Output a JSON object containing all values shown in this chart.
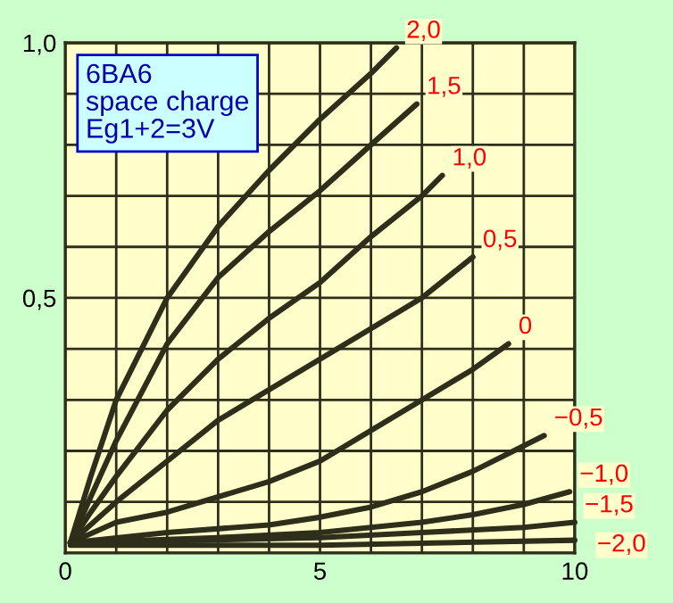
{
  "chart_data": {
    "type": "line",
    "annotations": [
      "6BA6\nspace charge\nEg1+2=3V"
    ],
    "xlim": [
      0,
      10
    ],
    "ylim": [
      0,
      1.0
    ],
    "xticks": [
      0,
      {
        "value": 1,
        "label": null
      },
      {
        "value": 2,
        "label": null
      },
      {
        "value": 3,
        "label": null
      },
      {
        "value": 4,
        "label": null
      },
      5,
      {
        "value": 6,
        "label": null
      },
      {
        "value": 7,
        "label": null
      },
      {
        "value": 8,
        "label": null
      },
      {
        "value": 9,
        "label": null
      },
      10
    ],
    "yticks": [
      {
        "value": 0,
        "label": null
      },
      {
        "value": 0.1,
        "label": null
      },
      {
        "value": 0.2,
        "label": null
      },
      {
        "value": 0.3,
        "label": null
      },
      {
        "value": 0.4,
        "label": null
      },
      {
        "value": 0.5,
        "label": "0,5"
      },
      {
        "value": 0.6,
        "label": null
      },
      {
        "value": 0.7,
        "label": null
      },
      {
        "value": 0.8,
        "label": null
      },
      {
        "value": 0.9,
        "label": null
      },
      {
        "value": 1.0,
        "label": "1,0"
      }
    ],
    "grid": true,
    "legend": false,
    "marker": "none",
    "line_style": "solid",
    "series": [
      {
        "name": "2,0",
        "color": "#2e2e1a",
        "x": [
          0.1,
          0.5,
          1,
          2,
          3,
          4,
          5,
          6,
          6.5
        ],
        "values": [
          0.02,
          0.15,
          0.3,
          0.5,
          0.64,
          0.75,
          0.85,
          0.94,
          0.99
        ]
      },
      {
        "name": "1,5",
        "color": "#2e2e1a",
        "x": [
          0.1,
          0.5,
          1,
          2,
          3,
          4,
          5,
          6,
          6.9
        ],
        "values": [
          0.02,
          0.11,
          0.22,
          0.41,
          0.54,
          0.63,
          0.71,
          0.8,
          0.88
        ]
      },
      {
        "name": "1,0",
        "color": "#2e2e1a",
        "x": [
          0.1,
          0.5,
          1,
          2,
          3,
          4,
          5,
          6,
          7,
          7.4
        ],
        "values": [
          0.02,
          0.08,
          0.15,
          0.28,
          0.38,
          0.46,
          0.53,
          0.62,
          0.7,
          0.74
        ]
      },
      {
        "name": "0,5",
        "color": "#2e2e1a",
        "x": [
          0.1,
          1,
          2,
          3,
          4,
          5,
          6,
          7,
          8
        ],
        "values": [
          0.02,
          0.1,
          0.18,
          0.26,
          0.32,
          0.38,
          0.44,
          0.5,
          0.58
        ]
      },
      {
        "name": "0",
        "color": "#2e2e1a",
        "x": [
          0.1,
          1,
          2,
          3,
          4,
          5,
          6,
          7,
          8,
          8.7
        ],
        "values": [
          0.02,
          0.06,
          0.08,
          0.11,
          0.14,
          0.18,
          0.24,
          0.3,
          0.36,
          0.41
        ]
      },
      {
        "name": "−0,5",
        "color": "#2e2e1a",
        "x": [
          0.1,
          2,
          4,
          5,
          6,
          7,
          8,
          9.4
        ],
        "values": [
          0.02,
          0.04,
          0.055,
          0.07,
          0.09,
          0.12,
          0.16,
          0.23
        ]
      },
      {
        "name": "−1,0",
        "color": "#2e2e1a",
        "x": [
          0.1,
          3,
          5,
          7,
          8,
          9,
          9.9
        ],
        "values": [
          0.02,
          0.03,
          0.04,
          0.06,
          0.075,
          0.095,
          0.12
        ]
      },
      {
        "name": "−1,5",
        "color": "#2e2e1a",
        "x": [
          0.1,
          5,
          7,
          9,
          10
        ],
        "values": [
          0.02,
          0.03,
          0.04,
          0.05,
          0.06
        ]
      },
      {
        "name": "−2,0",
        "color": "#2e2e1a",
        "x": [
          0.1,
          5,
          10
        ],
        "values": [
          0.015,
          0.015,
          0.025
        ]
      }
    ]
  }
}
